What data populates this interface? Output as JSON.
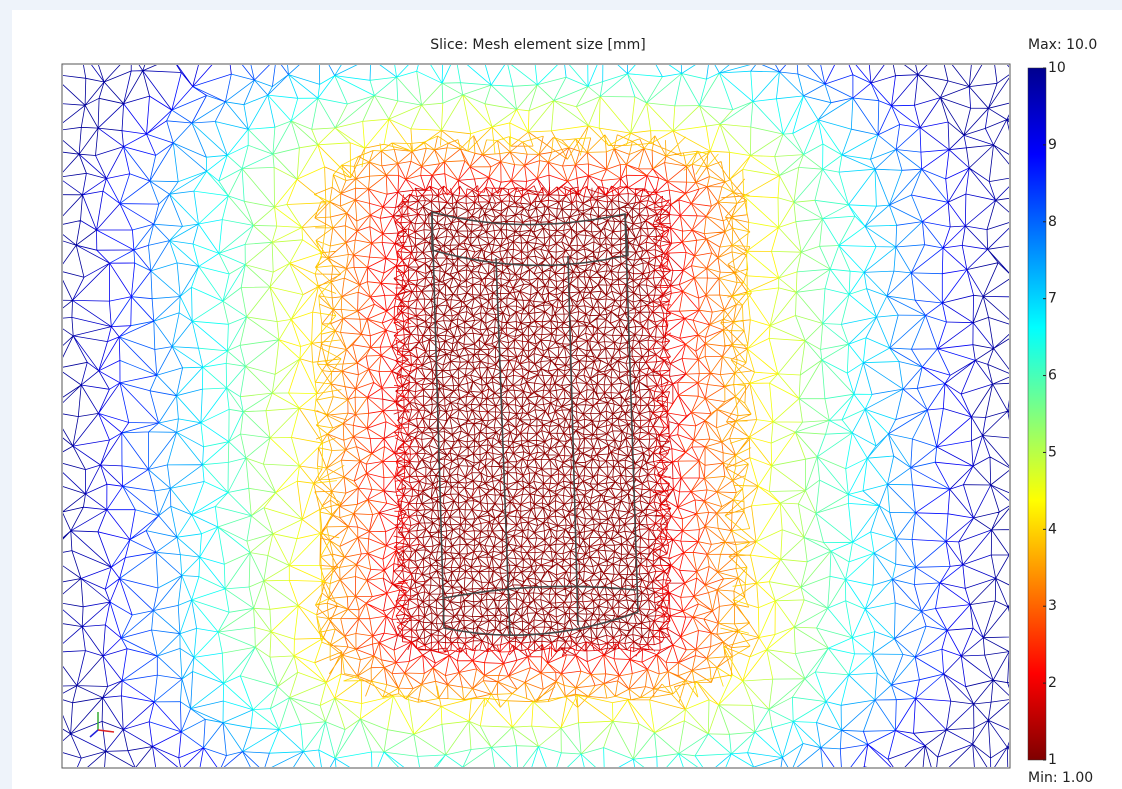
{
  "chart_data": {
    "type": "slice",
    "title": "Slice: Mesh element size [mm]",
    "max_label": "Max: 10.0",
    "min_label": "Min: 1.00",
    "clim": [
      1,
      10
    ],
    "cticks": [
      1,
      2,
      3,
      4,
      5,
      6,
      7,
      8,
      9,
      10
    ],
    "colormap": [
      "#7f0000",
      "#ff0000",
      "#ff8000",
      "#ffff00",
      "#80ff80",
      "#00ffff",
      "#0080ff",
      "#0000ff",
      "#00008f"
    ]
  }
}
